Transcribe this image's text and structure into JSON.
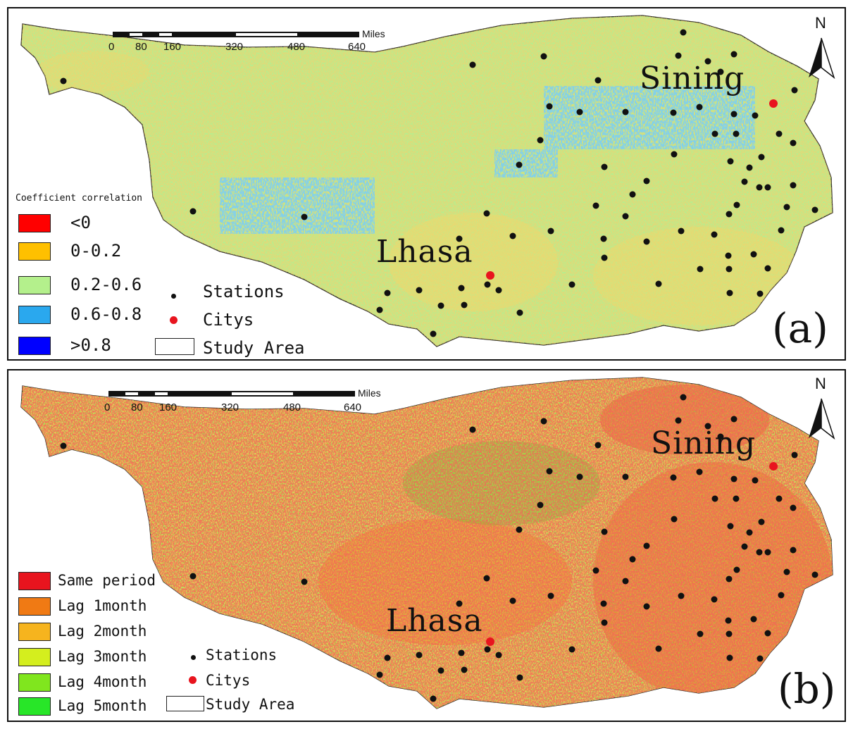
{
  "colors": {
    "lt0": "#ff0000",
    "c0_02": "#ffc000",
    "c02_06": "#b4f08c",
    "c06_08": "#2aa8ee",
    "gt08": "#0000ff",
    "same_period": "#e8141e",
    "lag1": "#f07a14",
    "lag2": "#f6b41e",
    "lag3": "#d4ee1e",
    "lag4": "#80e61e",
    "lag5": "#28e628",
    "station": "#111111",
    "city": "#e8141e"
  },
  "scale_bar": {
    "ticks": [
      "0",
      "80",
      "160",
      "320",
      "480",
      "640"
    ],
    "unit": "Miles"
  },
  "north_label": "N",
  "cities": {
    "lhasa": "Lhasa",
    "sining": "Sining"
  },
  "panel_a": {
    "label": "(a)",
    "legend": {
      "title": "Coefficient correlation",
      "items": [
        "<0",
        "0-0.2",
        "0.2-0.6",
        "0.6-0.8",
        ">0.8"
      ],
      "stations": "Stations",
      "citys": "Citys",
      "study_area": "Study Area"
    }
  },
  "panel_b": {
    "label": "(b)",
    "legend": {
      "items": [
        "Same period",
        "Lag 1month",
        "Lag 2month",
        "Lag 3month",
        "Lag 4month",
        "Lag 5month"
      ],
      "stations": "Stations",
      "citys": "Citys",
      "study_area": "Study Area"
    }
  }
}
